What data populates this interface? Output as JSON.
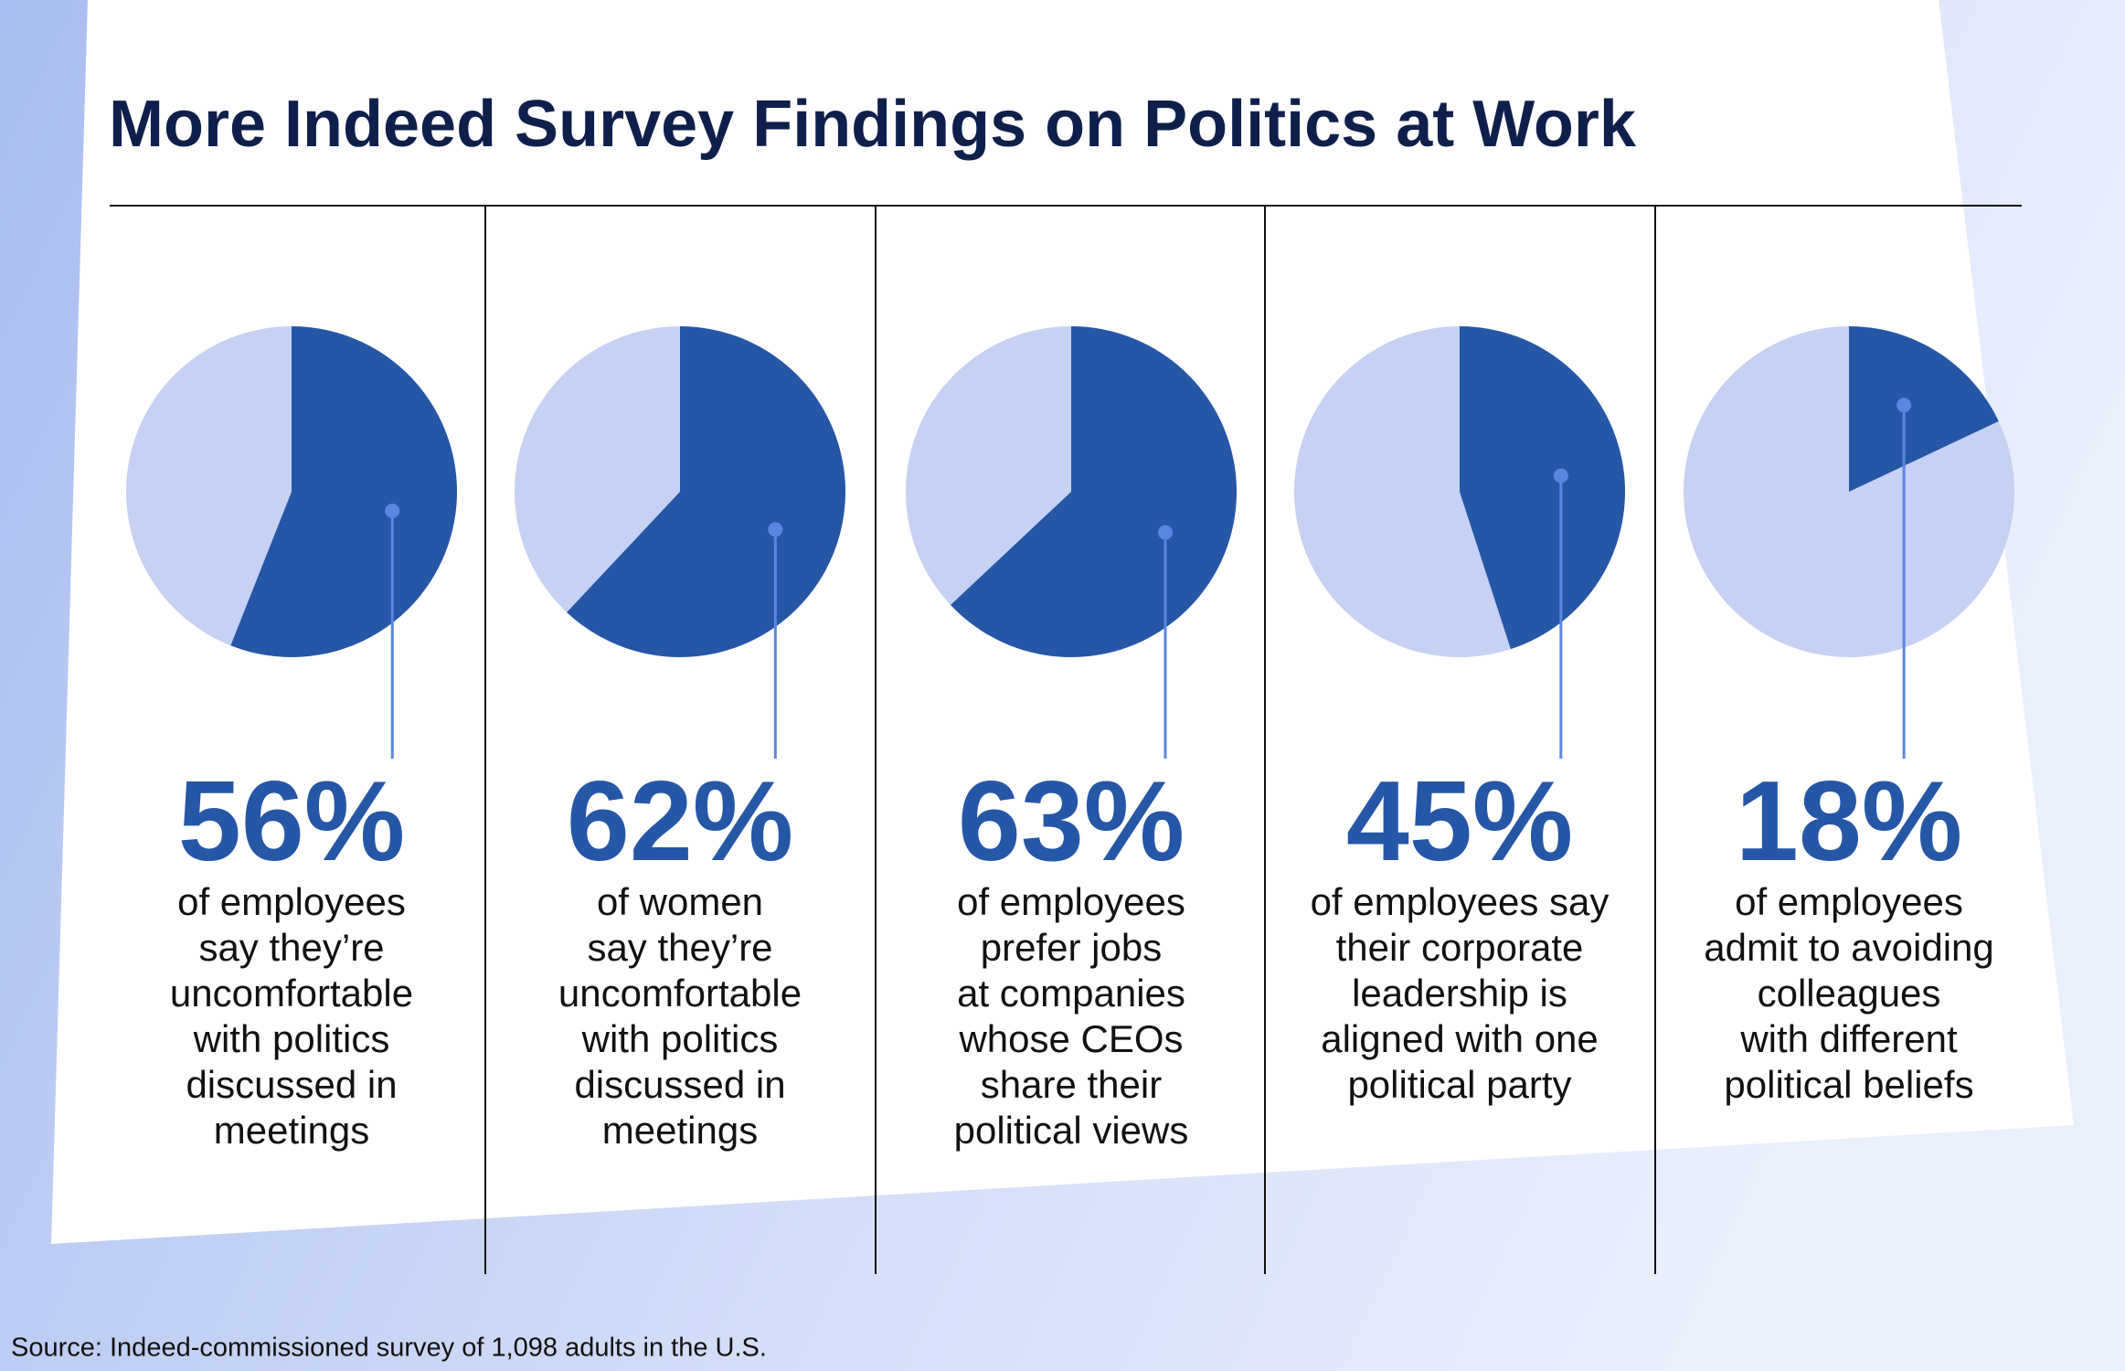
{
  "title": "More Indeed Survey Findings on Politics at Work",
  "source": "Source: Indeed-commissioned survey of 1,098 adults in the U.S.",
  "chart_data": [
    {
      "type": "pie",
      "values": [
        56
      ],
      "value_labels": [
        "56%"
      ],
      "color": "#2656a6",
      "rest_color": "#c6d1f4",
      "caption": [
        "of employees",
        "say they’re",
        "uncomfortable",
        "with politics",
        "discussed in",
        "meetings"
      ]
    },
    {
      "type": "pie",
      "values": [
        62
      ],
      "value_labels": [
        "62%"
      ],
      "color": "#2656a6",
      "rest_color": "#c6d1f4",
      "caption": [
        "of women",
        "say they’re",
        "uncomfortable",
        "with politics",
        "discussed in",
        "meetings"
      ]
    },
    {
      "type": "pie",
      "values": [
        63
      ],
      "value_labels": [
        "63%"
      ],
      "color": "#2656a6",
      "rest_color": "#c6d1f4",
      "caption": [
        "of employees",
        "prefer jobs",
        "at companies",
        "whose CEOs",
        "share their",
        "political views"
      ]
    },
    {
      "type": "pie",
      "values": [
        45
      ],
      "value_labels": [
        "45%"
      ],
      "color": "#2656a6",
      "rest_color": "#c6d1f4",
      "caption": [
        "of employees say",
        "their corporate",
        "leadership is",
        "aligned with one",
        "political party"
      ]
    },
    {
      "type": "pie",
      "values": [
        18
      ],
      "value_labels": [
        "18%"
      ],
      "color": "#2656a6",
      "rest_color": "#c6d1f4",
      "caption": [
        "of employees",
        "admit to avoiding",
        "colleagues",
        "with different",
        "political beliefs"
      ]
    }
  ]
}
